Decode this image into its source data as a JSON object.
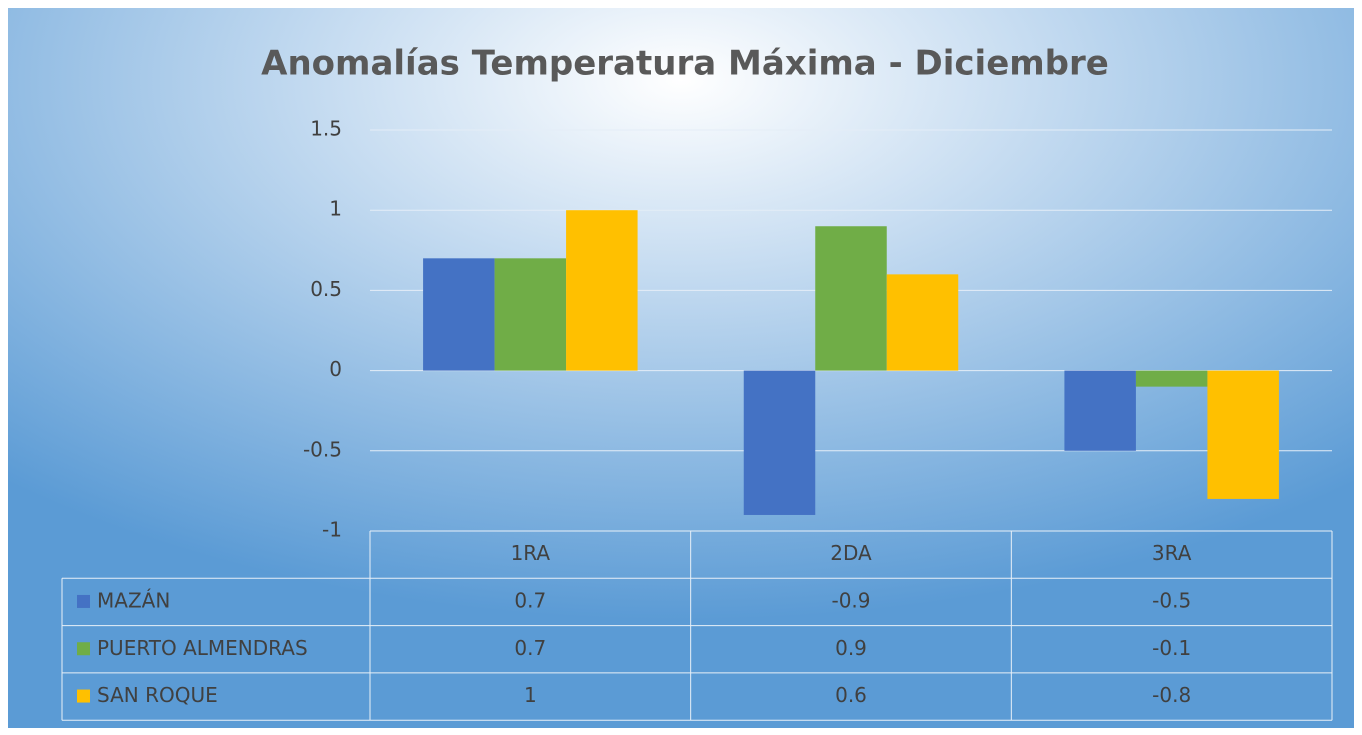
{
  "chart_data": {
    "type": "bar",
    "title": "Anomalías Temperatura Máxima - Diciembre",
    "categories": [
      "1RA",
      "2DA",
      "3RA"
    ],
    "series": [
      {
        "name": "MAZÁN",
        "color": "#4472c4",
        "values": [
          0.7,
          -0.9,
          -0.5
        ]
      },
      {
        "name": "PUERTO ALMENDRAS",
        "color": "#70ad47",
        "values": [
          0.7,
          0.9,
          -0.1
        ]
      },
      {
        "name": "SAN ROQUE",
        "color": "#ffc000",
        "values": [
          1,
          0.6,
          -0.8
        ]
      }
    ],
    "ylim": [
      -1,
      1.5
    ],
    "yticks": [
      -1,
      -0.5,
      0,
      0.5,
      1,
      1.5
    ],
    "grid": true,
    "data_table": true
  }
}
